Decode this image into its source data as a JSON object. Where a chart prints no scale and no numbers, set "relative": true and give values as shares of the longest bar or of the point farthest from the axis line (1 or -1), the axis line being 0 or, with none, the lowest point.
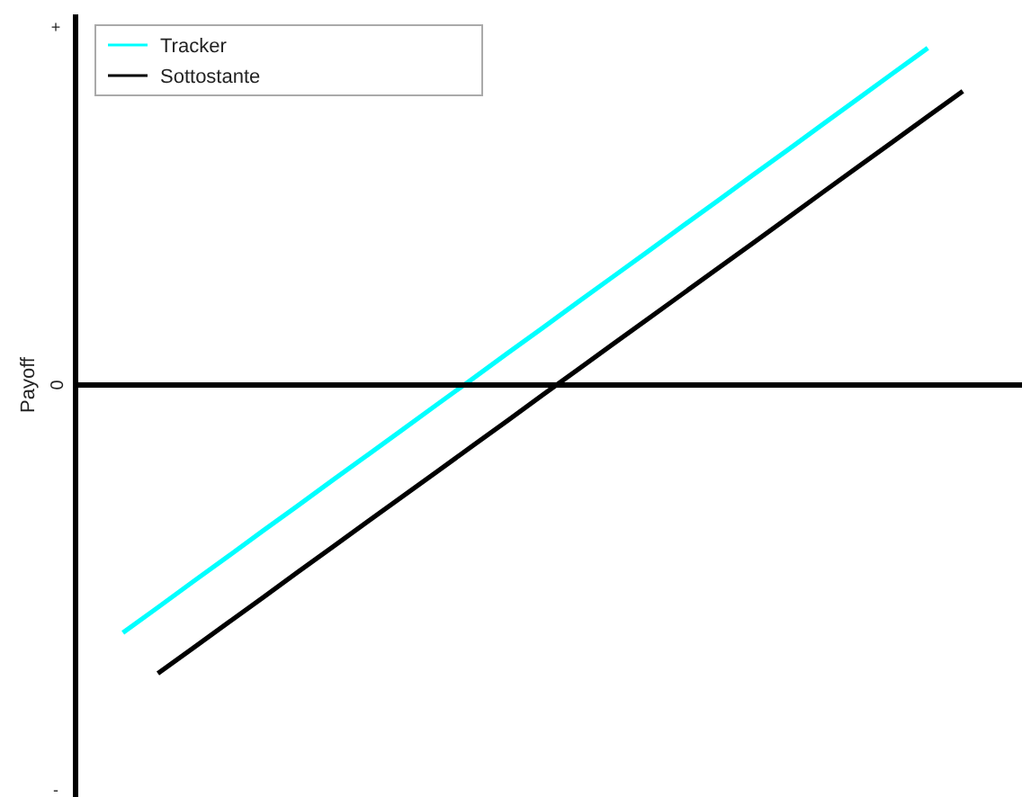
{
  "chart_data": {
    "type": "line",
    "relative": true,
    "ylabel": "Payoff",
    "legend": "top left",
    "categories": [
      null,
      null,
      null,
      null,
      null,
      null,
      null,
      null,
      null,
      null,
      null,
      null,
      null,
      null,
      null,
      null,
      null,
      null,
      null,
      null,
      null,
      null,
      null,
      null,
      null
    ],
    "series": [
      {
        "name": "Tracker",
        "color": "#00ffff",
        "values": [
          -0.735,
          -0.66,
          -0.584,
          -0.509,
          -0.433,
          -0.358,
          -0.282,
          -0.207,
          -0.132,
          -0.056,
          0.019,
          0.095,
          0.17,
          0.246,
          0.321,
          0.396,
          0.472,
          0.547,
          0.623,
          0.698,
          0.774,
          0.849,
          0.925,
          1,
          null
        ]
      },
      {
        "name": "Sottostante",
        "color": "#000000",
        "values": [
          null,
          -0.856,
          -0.781,
          -0.706,
          -0.631,
          -0.555,
          -0.48,
          -0.405,
          -0.33,
          -0.255,
          -0.18,
          -0.105,
          -0.029,
          0.046,
          0.121,
          0.196,
          0.271,
          0.346,
          0.421,
          0.496,
          0.572,
          0.647,
          0.722,
          0.797,
          0.872
        ]
      }
    ],
    "annotations": [
      "+",
      "0",
      "-"
    ]
  }
}
